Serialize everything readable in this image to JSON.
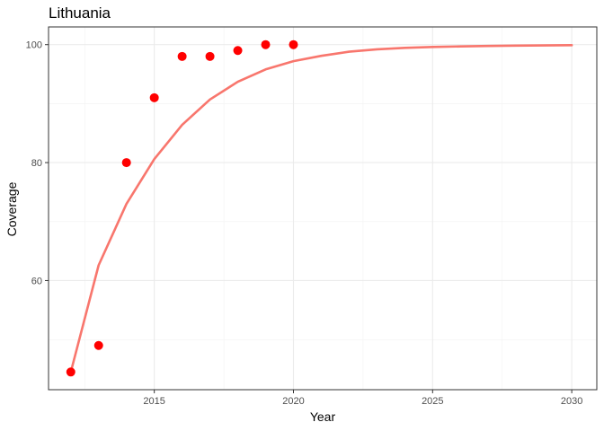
{
  "chart_data": {
    "type": "scatter",
    "title": "Lithuania",
    "xlabel": "Year",
    "ylabel": "Coverage",
    "xlim": [
      2011.2,
      2030.9
    ],
    "ylim": [
      41.5,
      103
    ],
    "x_ticks": [
      2015,
      2020,
      2025,
      2030
    ],
    "x_minor_ticks": [
      2012.5,
      2017.5,
      2022.5,
      2027.5
    ],
    "y_ticks": [
      60,
      80,
      100
    ],
    "y_minor_ticks": [
      50,
      70,
      90
    ],
    "grid": true,
    "series": [
      {
        "type": "scatter",
        "color": "#ff0000",
        "x": [
          2012,
          2013,
          2014,
          2015,
          2016,
          2017,
          2018,
          2019,
          2020
        ],
        "y": [
          44.5,
          49,
          80,
          91,
          98,
          98,
          99,
          100,
          100
        ]
      },
      {
        "type": "line",
        "color": "#f8766d",
        "x": [
          2012,
          2013,
          2014,
          2015,
          2016,
          2017,
          2018,
          2019,
          2020,
          2021,
          2022,
          2023,
          2024,
          2025,
          2026,
          2027,
          2028,
          2029,
          2030
        ],
        "y": [
          44.5,
          62.6,
          73,
          80.6,
          86.4,
          90.7,
          93.7,
          95.8,
          97.2,
          98.1,
          98.8,
          99.2,
          99.45,
          99.6,
          99.7,
          99.78,
          99.83,
          99.87,
          99.9
        ]
      }
    ]
  }
}
